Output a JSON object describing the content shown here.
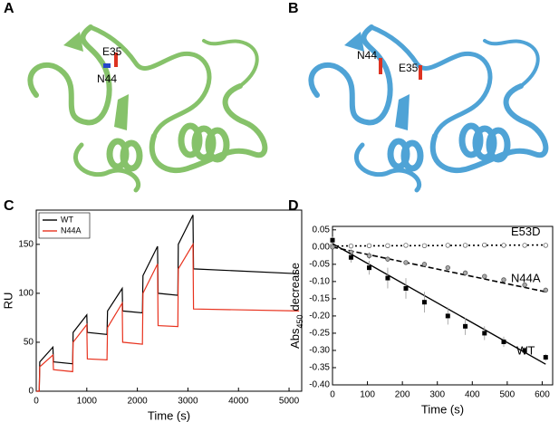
{
  "panels": [
    {
      "label": "A",
      "residues": [
        "E35",
        "N44"
      ]
    },
    {
      "label": "B",
      "residues": [
        "N44",
        "E35"
      ]
    },
    {
      "label": "C"
    },
    {
      "label": "D"
    }
  ],
  "chart_data": [
    {
      "type": "line",
      "x_label": "Time (s)",
      "y_label": "RU",
      "x": [
        0,
        60,
        70,
        330,
        340,
        720,
        730,
        1000,
        1010,
        1400,
        1410,
        1700,
        1710,
        2100,
        2110,
        2400,
        2410,
        2800,
        2810,
        3100,
        3110,
        5200
      ],
      "series": [
        {
          "name": "WT",
          "color": "#000000",
          "values": [
            0,
            0,
            30,
            45,
            30,
            28,
            60,
            78,
            60,
            58,
            82,
            105,
            82,
            80,
            118,
            148,
            100,
            98,
            150,
            180,
            125,
            120
          ]
        },
        {
          "name": "N44A",
          "color": "#e8321e",
          "values": [
            0,
            0,
            25,
            37,
            22,
            20,
            50,
            68,
            33,
            32,
            65,
            90,
            50,
            48,
            100,
            130,
            67,
            66,
            125,
            150,
            84,
            82
          ]
        }
      ],
      "xlim": [
        0,
        5250
      ],
      "xticks": [
        0,
        1000,
        2000,
        3000,
        4000,
        5000
      ],
      "ylim": [
        0,
        185
      ],
      "yticks": [
        0,
        50,
        100,
        150
      ],
      "legend": "upper-left"
    },
    {
      "type": "scatter",
      "x_label": "Time (s)",
      "y_label": {
        "main": "Abs",
        "sub": "450",
        "rest": "decrease"
      },
      "x": [
        0,
        53,
        105,
        158,
        210,
        263,
        330,
        380,
        435,
        490,
        550,
        610
      ],
      "series": [
        {
          "name": "E53D",
          "color": "#666666",
          "marker": "open-circle",
          "line_style": "dotted",
          "values": [
            0.005,
            0.003,
            0.004,
            0.004,
            0.005,
            0.004,
            0.005,
            0.005,
            0.006,
            0.005,
            0.005,
            0.005
          ],
          "errors": [
            0.004,
            0.003,
            0.003,
            0.003,
            0.003,
            0.003,
            0.003,
            0.003,
            0.003,
            0.003,
            0.003,
            0.003
          ],
          "fit": {
            "x": [
              0,
              610
            ],
            "y": [
              0.003,
              0.006
            ]
          }
        },
        {
          "name": "N44A",
          "color": "#555555",
          "marker": "cross-circle",
          "line_style": "dashed",
          "values": [
            0.0,
            -0.015,
            -0.025,
            -0.035,
            -0.045,
            -0.05,
            -0.06,
            -0.075,
            -0.085,
            -0.095,
            -0.11,
            -0.125
          ],
          "errors": [
            0.006,
            0.008,
            0.01,
            0.008,
            0.006,
            0.006,
            0.006,
            0.006,
            0.006,
            0.006,
            0.006,
            0.006
          ],
          "fit": {
            "x": [
              0,
              610
            ],
            "y": [
              0.0,
              -0.13
            ]
          }
        },
        {
          "name": "WT",
          "color": "#000000",
          "marker": "square",
          "line_style": "solid",
          "values": [
            0.02,
            -0.03,
            -0.06,
            -0.09,
            -0.12,
            -0.16,
            -0.2,
            -0.23,
            -0.25,
            -0.275,
            -0.3,
            -0.32
          ],
          "errors": [
            0.01,
            0.015,
            0.02,
            0.03,
            0.03,
            0.03,
            0.025,
            0.025,
            0.02,
            0.015,
            0.01,
            0.01
          ],
          "fit": {
            "x": [
              0,
              610
            ],
            "y": [
              0.01,
              -0.34
            ]
          }
        }
      ],
      "xlim": [
        0,
        630
      ],
      "xticks": [
        0,
        100,
        200,
        300,
        400,
        500,
        600
      ],
      "ylim": [
        -0.4,
        0.06
      ],
      "yticks": [
        0.05,
        {
          "value": 0,
          "label": "0.00"
        },
        -0.05,
        {
          "value": -0.1,
          "label": "-0.10"
        },
        -0.15,
        {
          "value": -0.2,
          "label": "-0.20"
        },
        -0.25,
        {
          "value": -0.3,
          "label": "-0.30"
        },
        -0.35,
        {
          "value": -0.4,
          "label": "-0.40"
        }
      ]
    }
  ]
}
